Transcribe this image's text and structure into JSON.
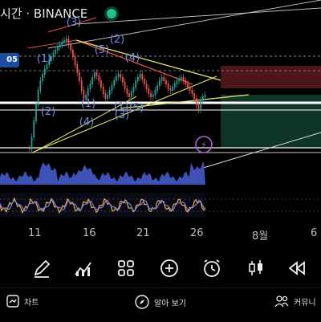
{
  "header": {
    "title": "시간 · BINANCE",
    "price_tag": "05",
    "live_indicator_color": "#1fbf8f"
  },
  "chart": {
    "wave_labels": [
      "(3)",
      "(2)",
      "(5)",
      "(4)",
      "(1)",
      "(2)",
      "(1)",
      "(4)",
      "(1)",
      "(3)",
      "(5)"
    ],
    "x_axis_labels": [
      "11",
      "16",
      "21",
      "26",
      "8월",
      "6"
    ],
    "colors": {
      "candle_up": "#26a69a",
      "candle_down": "#ef5350",
      "volume": "#3f51b5",
      "short_zone": "#5a1a1e",
      "long_zone": "#0f3b2c",
      "wave_label": "#6f8fe6",
      "trendline_yellow": "#e3e366"
    }
  },
  "toolbar": {
    "tools": [
      "pencil-icon",
      "indicators-icon",
      "layouts-icon",
      "add-icon",
      "alert-clock-icon",
      "candles-icon",
      "replay-icon"
    ]
  },
  "bottom_nav": {
    "chart_label": "차트",
    "explore_label": "알아 보기",
    "community_label": "커뮤니"
  }
}
